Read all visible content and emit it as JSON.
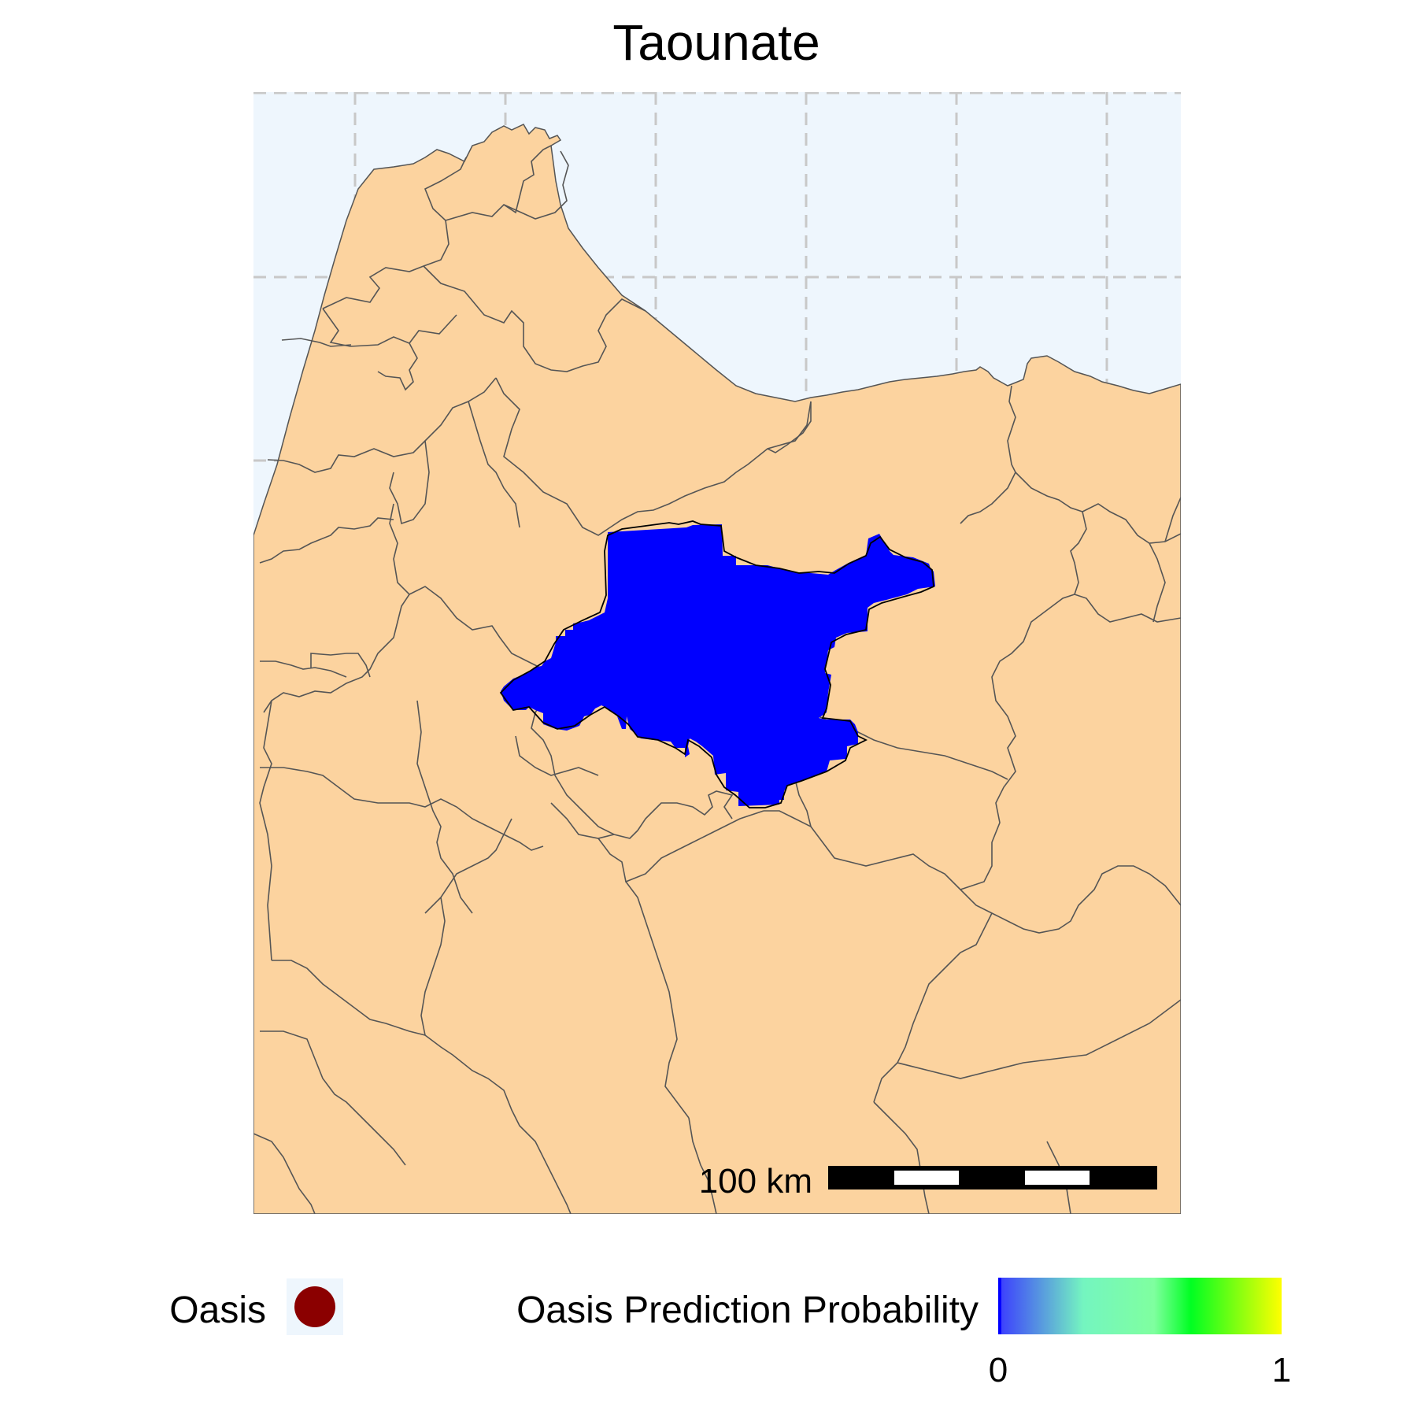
{
  "title": "Taounate",
  "colors": {
    "sea": "#EEF6FD",
    "land": "#FCD39F",
    "border": "#555555",
    "prediction": "#0000FF",
    "grid": "#C8C8C8",
    "oasis_marker": "#8B0000"
  },
  "scale_bar": {
    "label": "100 km"
  },
  "legend": {
    "oasis_label": "Oasis",
    "probability_label": "Oasis Prediction Probability",
    "min_label": "0",
    "max_label": "1",
    "gradient": [
      "#3B3BFF",
      "#74F5C0",
      "#7FFF9F",
      "#00FF22",
      "#FFFF00"
    ]
  }
}
